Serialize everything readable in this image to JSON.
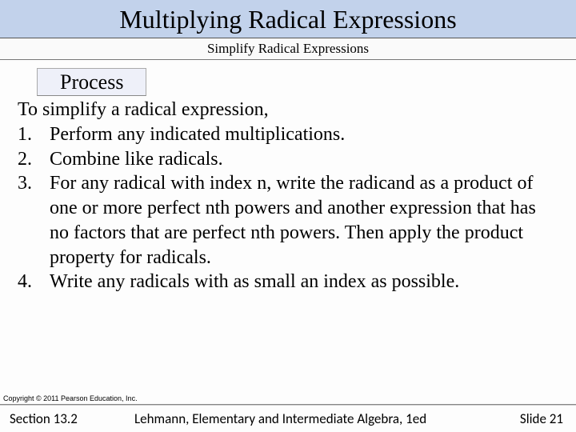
{
  "colors": {
    "title_bg": "#c2d2eb",
    "process_bg": "#eef0f9",
    "page_bg": "#fdfdfd",
    "border": "#777"
  },
  "typography": {
    "title_fontsize": 32,
    "subtitle_fontsize": 17,
    "body_fontsize": 24,
    "process_fontsize": 26,
    "copyright_fontsize": 9,
    "footer_fontsize": 17,
    "title_font": "Times New Roman",
    "body_font": "Times New Roman",
    "footer_font": "Calibri"
  },
  "title": "Multiplying Radical Expressions",
  "subtitle": "Simplify Radical Expressions",
  "process": {
    "label": "Process",
    "intro": "To simplify a radical expression,",
    "steps": [
      {
        "n": "1.",
        "text": "Perform any indicated multiplications."
      },
      {
        "n": "2.",
        "text": "Combine like radicals."
      },
      {
        "n": "3.",
        "text": "For any radical with index n, write the radicand as a product of one or more perfect nth powers and another expression that has no factors that are perfect nth powers. Then apply the product property for radicals."
      },
      {
        "n": "4.",
        "text": "Write any radicals with as small an index as possible."
      }
    ]
  },
  "copyright": "Copyright © 2011 Pearson Education, Inc.",
  "footer": {
    "section": "Section 13.2",
    "book": "Lehmann, Elementary and Intermediate Algebra, 1ed",
    "slide": "Slide 21"
  }
}
